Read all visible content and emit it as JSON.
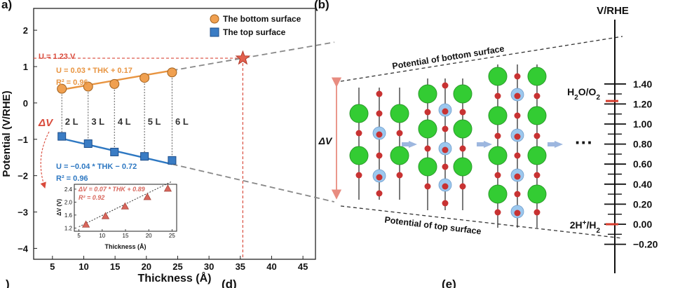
{
  "panel_labels": {
    "a": "a)",
    "b": "(b)",
    "c": ")",
    "d": "(d)",
    "e": "(e)"
  },
  "chart_data": [
    {
      "type": "scatter",
      "title": "",
      "xlabel": "Thickness (Å)",
      "ylabel": "Potential (V/RHE)",
      "xlim": [
        2,
        47
      ],
      "ylim": [
        -4.3,
        2.6
      ],
      "xticks": [
        5,
        10,
        15,
        20,
        25,
        30,
        35,
        40,
        45
      ],
      "yticks": [
        -4,
        -3,
        -2,
        -1,
        0,
        1,
        2
      ],
      "legend": [
        {
          "label": "The bottom surface",
          "color": "#F0A050",
          "marker": "circle"
        },
        {
          "label": "The top surface",
          "color": "#3A7CC4",
          "marker": "square"
        }
      ],
      "series": [
        {
          "name": "The bottom surface",
          "color": "#F0A050",
          "x": [
            6.5,
            10.7,
            14.9,
            19.7,
            24.1
          ],
          "y": [
            0.39,
            0.45,
            0.52,
            0.69,
            0.84
          ]
        },
        {
          "name": "The top surface",
          "color": "#3A7CC4",
          "x": [
            6.5,
            10.7,
            14.9,
            19.7,
            24.1
          ],
          "y": [
            -0.92,
            -1.12,
            -1.35,
            -1.47,
            -1.58
          ]
        }
      ],
      "fits": [
        {
          "series": "The bottom surface",
          "slope": 0.03,
          "intercept": 0.17,
          "equation": "U = 0.03 * THK + 0.17",
          "r2": "R² = 0.96",
          "color": "#E89440"
        },
        {
          "series": "The top surface",
          "slope": -0.04,
          "intercept": -0.72,
          "equation": "U = −0.04 * THK − 0.72",
          "r2": "R² = 0.96",
          "color": "#2E78C2"
        }
      ],
      "layer_labels": [
        "2 L",
        "3 L",
        "4 L",
        "5 L",
        "6 L"
      ],
      "reference_line": {
        "label": "U = 1.23 V",
        "y": 1.23,
        "x": 35.4
      },
      "delta_v_label": "ΔV",
      "extrapolation_x_end": 50
    },
    {
      "type": "scatter",
      "title": "",
      "xlabel": "Thickness (Å)",
      "ylabel": "ΔV (V)",
      "xlim": [
        4,
        26
      ],
      "ylim": [
        1.1,
        2.55
      ],
      "xticks": [
        5,
        10,
        15,
        20,
        25
      ],
      "yticks": [
        1.2,
        1.6,
        2.0,
        2.4
      ],
      "series": [
        {
          "name": "ΔV",
          "color": "#D8665C",
          "x": [
            6.5,
            10.7,
            14.9,
            19.7,
            24.1
          ],
          "y": [
            1.31,
            1.57,
            1.87,
            2.16,
            2.42
          ]
        }
      ],
      "fit": {
        "equation": "ΔV = 0.07 * THK + 0.89",
        "r2": "R² = 0.92",
        "slope": 0.07,
        "intercept": 0.89
      }
    },
    {
      "type": "diagram",
      "top_label": "Potential of bottom surface",
      "bottom_label": "Potential of top surface",
      "delta_label": "ΔV",
      "ellipsis": "···",
      "columns": [
        2,
        3,
        4
      ]
    },
    {
      "type": "axis",
      "title": "V/RHE",
      "ticks": [
        "1.40",
        "1.20",
        "1.00",
        "0.80",
        "0.60",
        "0.40",
        "0.20",
        "0.00",
        "−0.20"
      ],
      "tick_values": [
        1.4,
        1.2,
        1.0,
        0.8,
        0.6,
        0.4,
        0.2,
        0.0,
        -0.2
      ],
      "markers": [
        {
          "label": "H2O/O2",
          "value": 1.23,
          "color": "#D63B2B"
        },
        {
          "label": "2H+/H2",
          "value": 0.0,
          "color": "#D63B2B"
        }
      ]
    }
  ],
  "colors": {
    "bottom_marker": "#F0A050",
    "top_marker": "#3A7CC4",
    "accent_red": "#D94A3B",
    "atom_green": "#33CC33",
    "atom_red": "#C83232",
    "atom_blue": "#9CC8EE"
  }
}
